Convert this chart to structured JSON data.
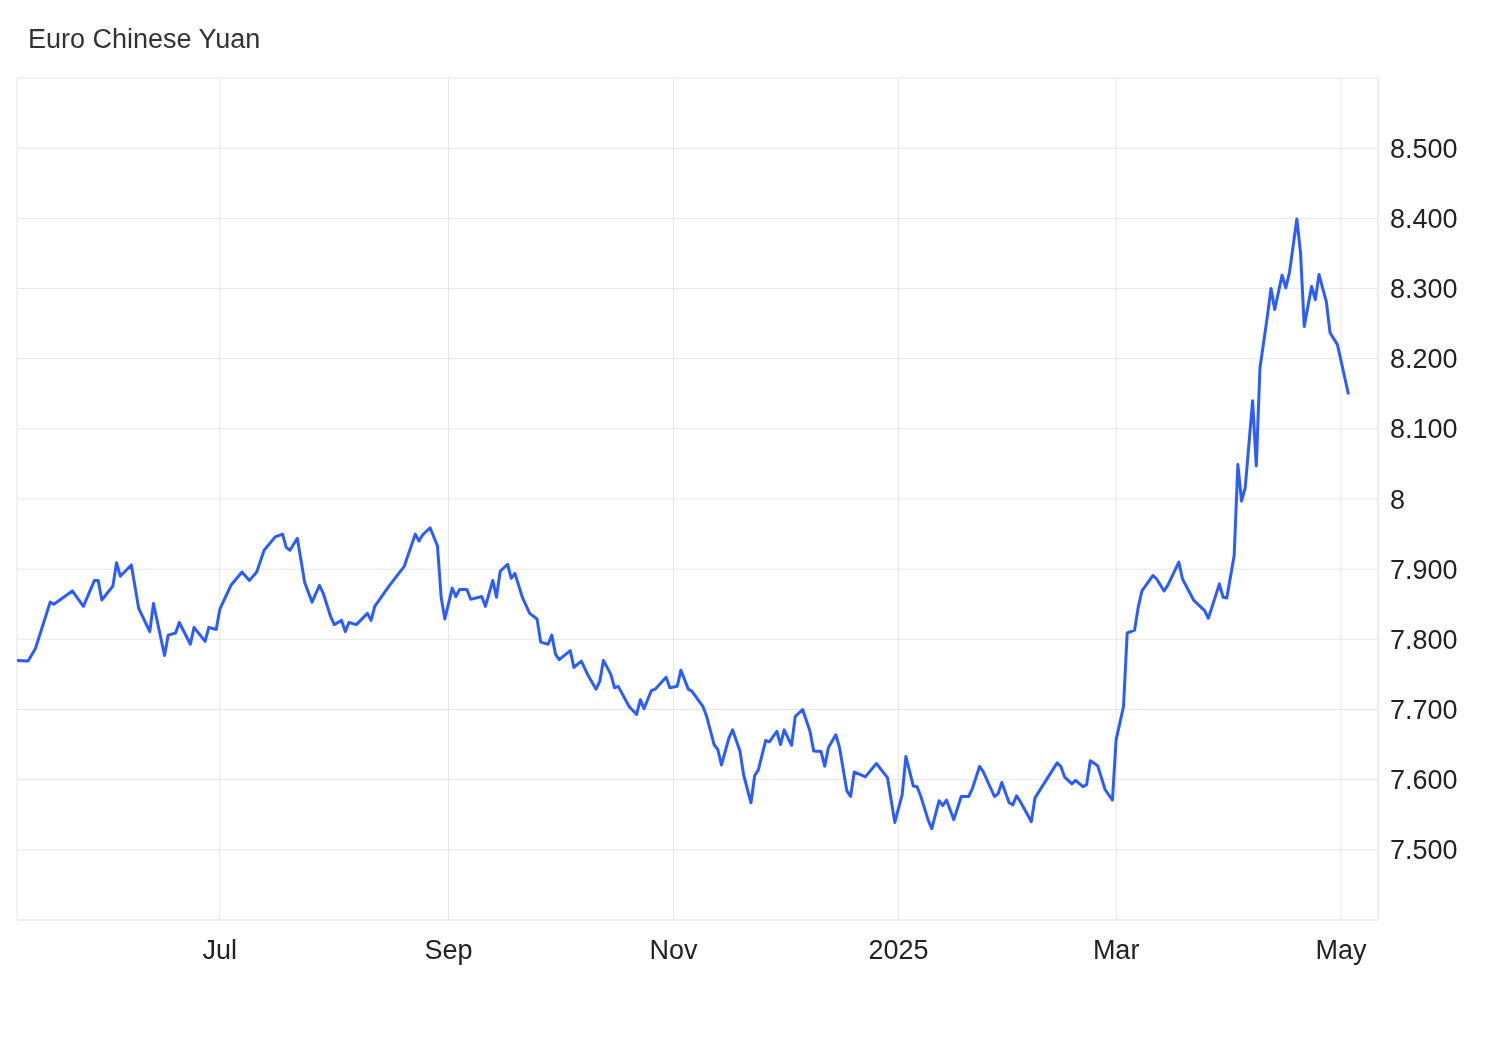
{
  "chart_data": {
    "type": "line",
    "title": "Euro Chinese Yuan",
    "x": [
      "2024-05-07",
      "2024-05-10",
      "2024-05-12",
      "2024-05-16",
      "2024-05-17",
      "2024-05-22",
      "2024-05-25",
      "2024-05-28",
      "2024-05-29",
      "2024-05-30",
      "2024-06-02",
      "2024-06-03",
      "2024-06-04",
      "2024-06-07",
      "2024-06-09",
      "2024-06-12",
      "2024-06-13",
      "2024-06-16",
      "2024-06-17",
      "2024-06-19",
      "2024-06-20",
      "2024-06-23",
      "2024-06-24",
      "2024-06-27",
      "2024-06-28",
      "2024-06-30",
      "2024-07-01",
      "2024-07-04",
      "2024-07-07",
      "2024-07-09",
      "2024-07-11",
      "2024-07-13",
      "2024-07-16",
      "2024-07-18",
      "2024-07-19",
      "2024-07-20",
      "2024-07-22",
      "2024-07-24",
      "2024-07-26",
      "2024-07-28",
      "2024-07-29",
      "2024-07-31",
      "2024-08-01",
      "2024-08-03",
      "2024-08-04",
      "2024-08-05",
      "2024-08-07",
      "2024-08-10",
      "2024-08-11",
      "2024-08-12",
      "2024-08-16",
      "2024-08-20",
      "2024-08-23",
      "2024-08-24",
      "2024-08-25",
      "2024-08-27",
      "2024-08-29",
      "2024-08-30",
      "2024-08-31",
      "2024-09-02",
      "2024-09-03",
      "2024-09-04",
      "2024-09-06",
      "2024-09-07",
      "2024-09-10",
      "2024-09-11",
      "2024-09-13",
      "2024-09-14",
      "2024-09-15",
      "2024-09-17",
      "2024-09-18",
      "2024-09-19",
      "2024-09-21",
      "2024-09-23",
      "2024-09-25",
      "2024-09-26",
      "2024-09-28",
      "2024-09-29",
      "2024-09-30",
      "2024-10-01",
      "2024-10-04",
      "2024-10-05",
      "2024-10-07",
      "2024-10-09",
      "2024-10-11",
      "2024-10-12",
      "2024-10-13",
      "2024-10-15",
      "2024-10-16",
      "2024-10-17",
      "2024-10-20",
      "2024-10-22",
      "2024-10-23",
      "2024-10-24",
      "2024-10-26",
      "2024-10-27",
      "2024-10-30",
      "2024-10-31",
      "2024-11-02",
      "2024-11-03",
      "2024-11-05",
      "2024-11-06",
      "2024-11-09",
      "2024-11-10",
      "2024-11-12",
      "2024-11-13",
      "2024-11-14",
      "2024-11-16",
      "2024-11-17",
      "2024-11-19",
      "2024-11-20",
      "2024-11-22",
      "2024-11-23",
      "2024-11-24",
      "2024-11-26",
      "2024-11-27",
      "2024-11-29",
      "2024-11-30",
      "2024-12-01",
      "2024-12-03",
      "2024-12-04",
      "2024-12-06",
      "2024-12-08",
      "2024-12-09",
      "2024-12-11",
      "2024-12-12",
      "2024-12-13",
      "2024-12-15",
      "2024-12-16",
      "2024-12-18",
      "2024-12-19",
      "2024-12-20",
      "2024-12-23",
      "2024-12-26",
      "2024-12-29",
      "2024-12-31",
      "2025-01-02",
      "2025-01-03",
      "2025-01-05",
      "2025-01-06",
      "2025-01-07",
      "2025-01-09",
      "2025-01-10",
      "2025-01-12",
      "2025-01-13",
      "2025-01-14",
      "2025-01-16",
      "2025-01-18",
      "2025-01-20",
      "2025-01-21",
      "2025-01-23",
      "2025-01-24",
      "2025-01-27",
      "2025-01-28",
      "2025-01-29",
      "2025-01-31",
      "2025-02-01",
      "2025-02-02",
      "2025-02-03",
      "2025-02-05",
      "2025-02-06",
      "2025-02-07",
      "2025-02-13",
      "2025-02-14",
      "2025-02-15",
      "2025-02-17",
      "2025-02-18",
      "2025-02-20",
      "2025-02-21",
      "2025-02-22",
      "2025-02-24",
      "2025-02-26",
      "2025-02-28",
      "2025-03-01",
      "2025-03-03",
      "2025-03-04",
      "2025-03-06",
      "2025-03-07",
      "2025-03-08",
      "2025-03-11",
      "2025-03-12",
      "2025-03-14",
      "2025-03-15",
      "2025-03-18",
      "2025-03-19",
      "2025-03-22",
      "2025-03-25",
      "2025-03-26",
      "2025-03-27",
      "2025-03-29",
      "2025-03-30",
      "2025-03-31",
      "2025-04-02",
      "2025-04-03",
      "2025-04-04",
      "2025-04-05",
      "2025-04-07",
      "2025-04-08",
      "2025-04-09",
      "2025-04-11",
      "2025-04-12",
      "2025-04-13",
      "2025-04-15",
      "2025-04-16",
      "2025-04-17",
      "2025-04-19",
      "2025-04-20",
      "2025-04-21",
      "2025-04-23",
      "2025-04-24",
      "2025-04-25",
      "2025-04-27",
      "2025-04-28",
      "2025-04-30",
      "2025-05-03"
    ],
    "series": [
      {
        "color": "#2b5cff",
        "values": [
          7.77,
          7.769,
          7.787,
          7.853,
          7.85,
          7.869,
          7.847,
          7.884,
          7.884,
          7.856,
          7.876,
          7.909,
          7.89,
          7.906,
          7.844,
          7.811,
          7.851,
          7.777,
          7.806,
          7.809,
          7.824,
          7.793,
          7.817,
          7.797,
          7.817,
          7.814,
          7.843,
          7.877,
          7.896,
          7.884,
          7.896,
          7.927,
          7.946,
          7.95,
          7.931,
          7.927,
          7.944,
          7.881,
          7.853,
          7.877,
          7.866,
          7.833,
          7.821,
          7.827,
          7.811,
          7.824,
          7.821,
          7.837,
          7.827,
          7.847,
          7.877,
          7.904,
          7.95,
          7.94,
          7.949,
          7.959,
          7.933,
          7.86,
          7.829,
          7.873,
          7.861,
          7.871,
          7.871,
          7.857,
          7.861,
          7.847,
          7.884,
          7.86,
          7.897,
          7.907,
          7.887,
          7.894,
          7.86,
          7.837,
          7.829,
          7.796,
          7.793,
          7.806,
          7.779,
          7.771,
          7.784,
          7.76,
          7.769,
          7.747,
          7.729,
          7.74,
          7.77,
          7.75,
          7.731,
          7.733,
          7.704,
          7.693,
          7.714,
          7.701,
          7.727,
          7.729,
          7.746,
          7.731,
          7.733,
          7.756,
          7.729,
          7.726,
          7.704,
          7.69,
          7.65,
          7.643,
          7.621,
          7.659,
          7.671,
          7.641,
          7.607,
          7.567,
          7.606,
          7.614,
          7.656,
          7.654,
          7.669,
          7.65,
          7.671,
          7.649,
          7.69,
          7.7,
          7.669,
          7.641,
          7.64,
          7.619,
          7.646,
          7.664,
          7.646,
          7.584,
          7.576,
          7.611,
          7.604,
          7.623,
          7.603,
          7.539,
          7.579,
          7.633,
          7.591,
          7.59,
          7.577,
          7.543,
          7.53,
          7.57,
          7.563,
          7.571,
          7.543,
          7.576,
          7.576,
          7.587,
          7.619,
          7.611,
          7.576,
          7.58,
          7.596,
          7.567,
          7.564,
          7.577,
          7.569,
          7.55,
          7.54,
          7.574,
          7.624,
          7.619,
          7.604,
          7.594,
          7.599,
          7.59,
          7.593,
          7.627,
          7.62,
          7.586,
          7.571,
          7.657,
          7.704,
          7.809,
          7.813,
          7.846,
          7.869,
          7.891,
          7.886,
          7.869,
          7.877,
          7.91,
          7.886,
          7.856,
          7.841,
          7.83,
          7.846,
          7.879,
          7.86,
          7.859,
          7.919,
          8.049,
          7.997,
          8.016,
          8.14,
          8.047,
          8.187,
          8.26,
          8.3,
          8.27,
          8.319,
          8.301,
          8.323,
          8.399,
          8.351,
          8.246,
          8.303,
          8.284,
          8.32,
          8.281,
          8.237,
          8.22,
          8.149
        ]
      }
    ],
    "xlim": [
      "2024-05-07",
      "2025-05-11"
    ],
    "xticks": [
      {
        "value": "2024-07-01",
        "label": "Jul"
      },
      {
        "value": "2024-09-01",
        "label": "Sep"
      },
      {
        "value": "2024-11-01",
        "label": "Nov"
      },
      {
        "value": "2025-01-01",
        "label": "2025"
      },
      {
        "value": "2025-03-01",
        "label": "Mar"
      },
      {
        "value": "2025-05-01",
        "label": "May"
      }
    ],
    "ylim": [
      7.4,
      8.6
    ],
    "yticks": [
      {
        "value": 7.5,
        "label": "7.500"
      },
      {
        "value": 7.6,
        "label": "7.600"
      },
      {
        "value": 7.7,
        "label": "7.700"
      },
      {
        "value": 7.8,
        "label": "7.800"
      },
      {
        "value": 7.9,
        "label": "7.900"
      },
      8,
      {
        "value": 8.1,
        "label": "8.100"
      },
      {
        "value": 8.2,
        "label": "8.200"
      },
      {
        "value": 8.3,
        "label": "8.300"
      },
      {
        "value": 8.4,
        "label": "8.400"
      },
      {
        "value": 8.5,
        "label": "8.500"
      }
    ],
    "grid": true,
    "marker": "none",
    "line_style": "solid"
  }
}
